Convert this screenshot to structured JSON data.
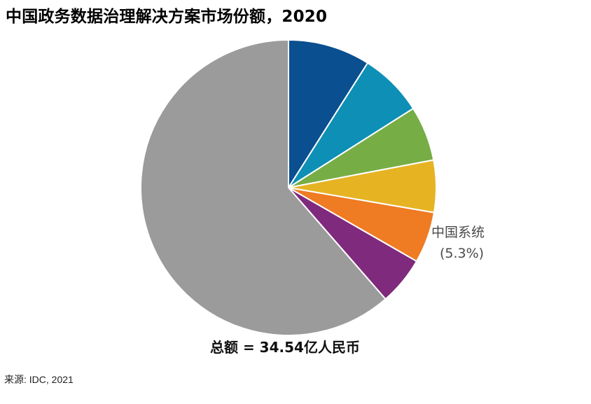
{
  "chart_data": {
    "type": "pie",
    "title": "中国政务数据治理解决方案市场份额，2020",
    "slices": [
      {
        "value": 9.0,
        "color": "#0a4f8f"
      },
      {
        "value": 7.0,
        "color": "#0e8fb5"
      },
      {
        "value": 6.0,
        "color": "#77ad45"
      },
      {
        "value": 5.7,
        "color": "#e6b323"
      },
      {
        "value": 5.6,
        "color": "#ef7b22"
      },
      {
        "value": 5.3,
        "color": "#7f2a7c",
        "label": "中国系统",
        "pct_label": "(5.3%)"
      },
      {
        "value": 61.4,
        "color": "#9b9b9b"
      }
    ],
    "total_label": "总额 = 34.54亿人民币",
    "source": "来源: IDC, 2021"
  }
}
